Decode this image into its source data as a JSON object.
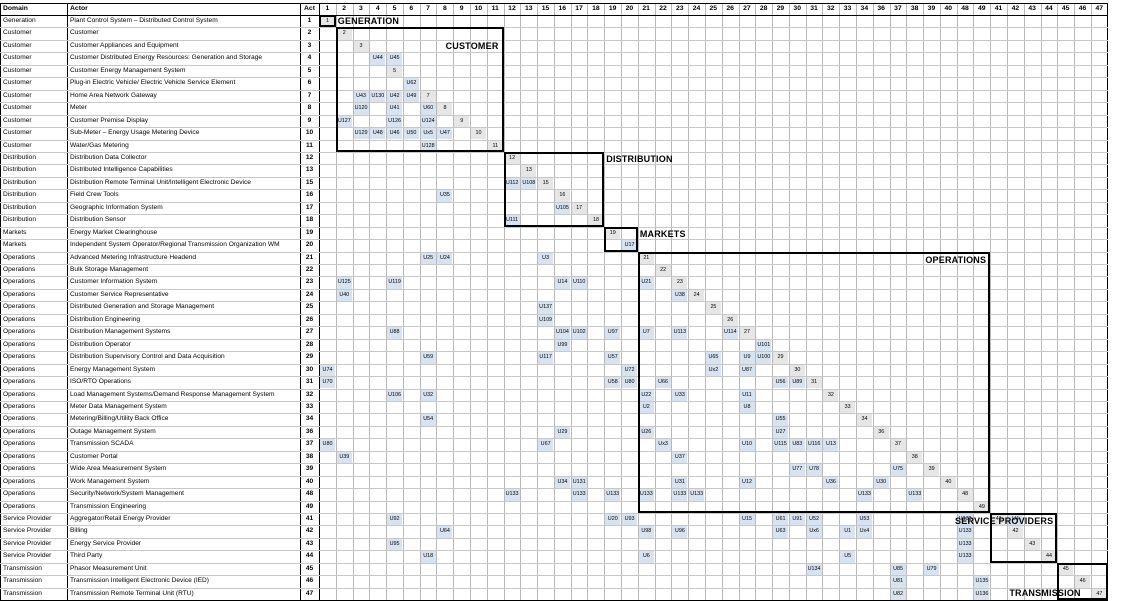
{
  "headers": {
    "domain": "Domain",
    "actor": "Actor",
    "act": "Act"
  },
  "columns": [
    1,
    2,
    3,
    4,
    5,
    6,
    7,
    8,
    9,
    10,
    11,
    12,
    13,
    15,
    16,
    17,
    18,
    19,
    20,
    21,
    22,
    23,
    24,
    25,
    26,
    27,
    28,
    29,
    30,
    31,
    32,
    33,
    34,
    36,
    37,
    38,
    39,
    40,
    48,
    49,
    41,
    42,
    43,
    44,
    45,
    46,
    47
  ],
  "rows": [
    {
      "domain": "Generation",
      "actor": "Plant Control System – Distributed Control System",
      "act": 1
    },
    {
      "domain": "Customer",
      "actor": "Customer",
      "act": 2
    },
    {
      "domain": "Customer",
      "actor": "Customer Appliances and Equipment",
      "act": 3
    },
    {
      "domain": "Customer",
      "actor": "Customer Distributed Energy Resources: Generation and Storage",
      "act": 4
    },
    {
      "domain": "Customer",
      "actor": "Customer Energy Management System",
      "act": 5
    },
    {
      "domain": "Customer",
      "actor": "Plug-in Electric Vehicle/ Electric Vehicle Service Element",
      "act": 6
    },
    {
      "domain": "Customer",
      "actor": "Home Area Network Gateway",
      "act": 7
    },
    {
      "domain": "Customer",
      "actor": "Meter",
      "act": 8
    },
    {
      "domain": "Customer",
      "actor": "Customer Premise Display",
      "act": 9
    },
    {
      "domain": "Customer",
      "actor": "Sub-Meter – Energy Usage Metering Device",
      "act": 10
    },
    {
      "domain": "Customer",
      "actor": "Water/Gas Metering",
      "act": 11
    },
    {
      "domain": "Distribution",
      "actor": "Distribution Data Collector",
      "act": 12
    },
    {
      "domain": "Distribution",
      "actor": "Distributed Intelligence Capabilities",
      "act": 13
    },
    {
      "domain": "Distribution",
      "actor": "Distribution Remote Terminal Unit/Intelligent Electronic Device",
      "act": 15
    },
    {
      "domain": "Distribution",
      "actor": "Field Crew Tools",
      "act": 16
    },
    {
      "domain": "Distribution",
      "actor": "Geographic Information System",
      "act": 17
    },
    {
      "domain": "Distribution",
      "actor": "Distribution Sensor",
      "act": 18
    },
    {
      "domain": "Markets",
      "actor": "Energy Market Clearinghouse",
      "act": 19
    },
    {
      "domain": "Markets",
      "actor": "Independent System Operator/Regional Transmission Organization WM",
      "act": 20
    },
    {
      "domain": "Operations",
      "actor": "Advanced Metering Infrastructure Headend",
      "act": 21
    },
    {
      "domain": "Operations",
      "actor": "Bulk Storage Management",
      "act": 22
    },
    {
      "domain": "Operations",
      "actor": "Customer Information System",
      "act": 23
    },
    {
      "domain": "Operations",
      "actor": "Customer Service Representative",
      "act": 24
    },
    {
      "domain": "Operations",
      "actor": "Distributed Generation and Storage Management",
      "act": 25
    },
    {
      "domain": "Operations",
      "actor": "Distribution Engineering",
      "act": 26
    },
    {
      "domain": "Operations",
      "actor": "Distribution Management Systems",
      "act": 27
    },
    {
      "domain": "Operations",
      "actor": "Distribution Operator",
      "act": 28
    },
    {
      "domain": "Operations",
      "actor": "Distribution Supervisory Control and Data Acquisition",
      "act": 29
    },
    {
      "domain": "Operations",
      "actor": "Energy Management System",
      "act": 30
    },
    {
      "domain": "Operations",
      "actor": "ISO/RTO Operations",
      "act": 31
    },
    {
      "domain": "Operations",
      "actor": "Load Management Systems/Demand Response Management System",
      "act": 32
    },
    {
      "domain": "Operations",
      "actor": "Meter Data Management System",
      "act": 33
    },
    {
      "domain": "Operations",
      "actor": "Metering/Billing/Utility Back Office",
      "act": 34
    },
    {
      "domain": "Operations",
      "actor": "Outage Management System",
      "act": 36
    },
    {
      "domain": "Operations",
      "actor": "Transmission SCADA",
      "act": 37
    },
    {
      "domain": "Operations",
      "actor": "Customer Portal",
      "act": 38
    },
    {
      "domain": "Operations",
      "actor": "Wide Area Measurement System",
      "act": 39
    },
    {
      "domain": "Operations",
      "actor": "Work Management System",
      "act": 40
    },
    {
      "domain": "Operations",
      "actor": "Security/Network/System Management",
      "act": 48
    },
    {
      "domain": "Operations",
      "actor": "Transmission Engineering",
      "act": 49
    },
    {
      "domain": "Service Provider",
      "actor": "Aggregator/Retail Energy Provider",
      "act": 41
    },
    {
      "domain": "Service Provider",
      "actor": "Billing",
      "act": 42
    },
    {
      "domain": "Service Provider",
      "actor": "Energy Service Provider",
      "act": 43
    },
    {
      "domain": "Service Provider",
      "actor": "Third Party",
      "act": 44
    },
    {
      "domain": "Transmission",
      "actor": "Phasor Measurement Unit",
      "act": 45
    },
    {
      "domain": "Transmission",
      "actor": "Transmission Intelligent Electronic Device (IED)",
      "act": 46
    },
    {
      "domain": "Transmission",
      "actor": "Transmission Remote Terminal Unit (RTU)",
      "act": 47
    }
  ],
  "cells": [
    [
      3,
      3,
      "U44"
    ],
    [
      3,
      4,
      "U45"
    ],
    [
      5,
      5,
      "U62"
    ],
    [
      6,
      2,
      "U43"
    ],
    [
      6,
      3,
      "U130"
    ],
    [
      6,
      4,
      "U42"
    ],
    [
      6,
      5,
      "U49"
    ],
    [
      7,
      2,
      "U120"
    ],
    [
      7,
      4,
      "U41"
    ],
    [
      7,
      6,
      "U60"
    ],
    [
      8,
      1,
      "U127"
    ],
    [
      8,
      4,
      "U126"
    ],
    [
      8,
      6,
      "U124"
    ],
    [
      9,
      2,
      "U129"
    ],
    [
      9,
      3,
      "U48"
    ],
    [
      9,
      4,
      "U46"
    ],
    [
      9,
      5,
      "U50"
    ],
    [
      9,
      6,
      "Ux5"
    ],
    [
      9,
      7,
      "U47"
    ],
    [
      10,
      6,
      "U128"
    ],
    [
      13,
      11,
      "U112"
    ],
    [
      13,
      12,
      "U108"
    ],
    [
      14,
      7,
      "U35"
    ],
    [
      15,
      14,
      "U105"
    ],
    [
      16,
      11,
      "U111"
    ],
    [
      18,
      18,
      "U17"
    ],
    [
      19,
      6,
      "U25"
    ],
    [
      19,
      7,
      "U24"
    ],
    [
      19,
      13,
      "U3"
    ],
    [
      21,
      1,
      "U125"
    ],
    [
      21,
      4,
      "U119"
    ],
    [
      21,
      14,
      "U14"
    ],
    [
      21,
      15,
      "U110"
    ],
    [
      21,
      19,
      "U21"
    ],
    [
      22,
      1,
      "U40"
    ],
    [
      22,
      21,
      "U38"
    ],
    [
      23,
      13,
      "U137"
    ],
    [
      24,
      13,
      "U109"
    ],
    [
      25,
      4,
      "U88"
    ],
    [
      25,
      14,
      "U104"
    ],
    [
      25,
      15,
      "U102"
    ],
    [
      25,
      17,
      "U97"
    ],
    [
      25,
      19,
      "U7"
    ],
    [
      25,
      21,
      "U113"
    ],
    [
      25,
      24,
      "U114"
    ],
    [
      26,
      14,
      "U99"
    ],
    [
      26,
      26,
      "U101"
    ],
    [
      27,
      6,
      "U59"
    ],
    [
      27,
      13,
      "U117"
    ],
    [
      27,
      17,
      "U57"
    ],
    [
      27,
      23,
      "U65"
    ],
    [
      27,
      25,
      "U9"
    ],
    [
      27,
      26,
      "U100"
    ],
    [
      28,
      0,
      "U74"
    ],
    [
      28,
      18,
      "U72"
    ],
    [
      28,
      23,
      "Ux2"
    ],
    [
      28,
      25,
      "U87"
    ],
    [
      29,
      0,
      "U70"
    ],
    [
      29,
      17,
      "U58"
    ],
    [
      29,
      18,
      "U80"
    ],
    [
      29,
      20,
      "U66"
    ],
    [
      29,
      27,
      "U56"
    ],
    [
      29,
      28,
      "U89"
    ],
    [
      30,
      4,
      "U106"
    ],
    [
      30,
      6,
      "U32"
    ],
    [
      30,
      19,
      "U22"
    ],
    [
      30,
      21,
      "U33"
    ],
    [
      30,
      25,
      "U11"
    ],
    [
      31,
      19,
      "U2"
    ],
    [
      31,
      25,
      "U8"
    ],
    [
      32,
      6,
      "U54"
    ],
    [
      32,
      27,
      "U55"
    ],
    [
      33,
      14,
      "U29"
    ],
    [
      33,
      19,
      "U26"
    ],
    [
      33,
      27,
      "U27"
    ],
    [
      34,
      0,
      "U80"
    ],
    [
      34,
      13,
      "U67"
    ],
    [
      34,
      20,
      "Ux3"
    ],
    [
      34,
      25,
      "U10"
    ],
    [
      34,
      27,
      "U115"
    ],
    [
      34,
      28,
      "U83"
    ],
    [
      34,
      29,
      "U116"
    ],
    [
      34,
      30,
      "U13"
    ],
    [
      35,
      1,
      "U39"
    ],
    [
      35,
      21,
      "U37"
    ],
    [
      36,
      28,
      "U77"
    ],
    [
      36,
      29,
      "U78"
    ],
    [
      36,
      34,
      "U75"
    ],
    [
      37,
      14,
      "U34"
    ],
    [
      37,
      15,
      "U131"
    ],
    [
      37,
      21,
      "U31"
    ],
    [
      37,
      25,
      "U12"
    ],
    [
      37,
      30,
      "U36"
    ],
    [
      37,
      33,
      "U30"
    ],
    [
      38,
      11,
      "U133"
    ],
    [
      38,
      15,
      "U133"
    ],
    [
      38,
      17,
      "U133"
    ],
    [
      38,
      19,
      "U133"
    ],
    [
      38,
      21,
      "U133"
    ],
    [
      38,
      22,
      "U133"
    ],
    [
      38,
      32,
      "U133"
    ],
    [
      38,
      35,
      "U133"
    ],
    [
      40,
      4,
      "U92"
    ],
    [
      40,
      17,
      "U20"
    ],
    [
      40,
      18,
      "U93"
    ],
    [
      40,
      25,
      "U15"
    ],
    [
      40,
      27,
      "U61"
    ],
    [
      40,
      28,
      "U91"
    ],
    [
      40,
      29,
      "U52"
    ],
    [
      40,
      32,
      "U53"
    ],
    [
      40,
      38,
      "U133"
    ],
    [
      40,
      41,
      "U4"
    ],
    [
      41,
      7,
      "U64"
    ],
    [
      41,
      19,
      "U98"
    ],
    [
      41,
      21,
      "U96"
    ],
    [
      41,
      27,
      "U63"
    ],
    [
      41,
      29,
      "Ux6"
    ],
    [
      41,
      31,
      "U1"
    ],
    [
      41,
      32,
      "Ux4"
    ],
    [
      41,
      38,
      "U133"
    ],
    [
      42,
      4,
      "U95"
    ],
    [
      42,
      38,
      "U133"
    ],
    [
      43,
      6,
      "U18"
    ],
    [
      43,
      19,
      "U6"
    ],
    [
      43,
      31,
      "U5"
    ],
    [
      43,
      38,
      "U133"
    ],
    [
      44,
      29,
      "U134"
    ],
    [
      44,
      34,
      "U85"
    ],
    [
      44,
      36,
      "U79"
    ],
    [
      45,
      34,
      "U81"
    ],
    [
      45,
      39,
      "U135"
    ],
    [
      46,
      34,
      "U82"
    ],
    [
      46,
      39,
      "U136"
    ]
  ],
  "groups": [
    {
      "label": "GENERATION",
      "r0": 0,
      "r1": 0,
      "c0": 0,
      "c1": 0
    },
    {
      "label": "CUSTOMER",
      "r0": 1,
      "r1": 10,
      "c0": 1,
      "c1": 10
    },
    {
      "label": "DISTRIBUTION",
      "r0": 11,
      "r1": 16,
      "c0": 11,
      "c1": 16
    },
    {
      "label": "MARKETS",
      "r0": 17,
      "r1": 18,
      "c0": 17,
      "c1": 18
    },
    {
      "label": "OPERATIONS",
      "r0": 19,
      "r1": 39,
      "c0": 19,
      "c1": 39
    },
    {
      "label": "SERVICE PROVIDERS",
      "r0": 40,
      "r1": 43,
      "c0": 40,
      "c1": 43
    },
    {
      "label": "TRANSMISSION",
      "r0": 44,
      "r1": 46,
      "c0": 44,
      "c1": 46
    }
  ]
}
